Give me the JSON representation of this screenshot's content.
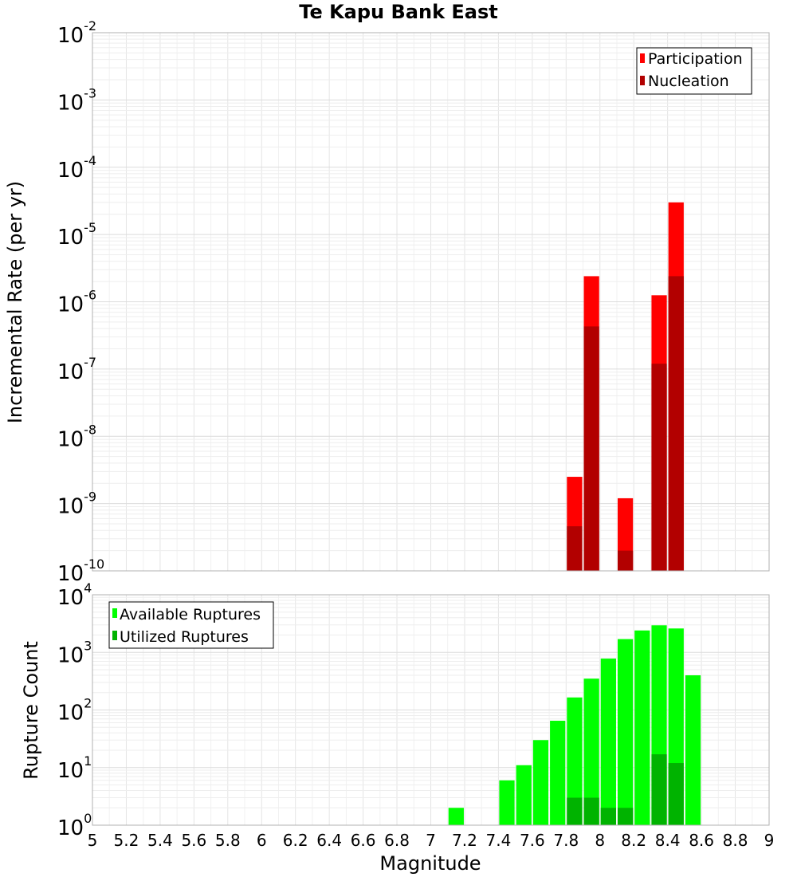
{
  "chart_data": [
    {
      "type": "bar",
      "title": "Te Kapu Bank East",
      "ylabel": "Incremental Rate (per yr)",
      "xlabel": "",
      "yscale": "log",
      "ylim_exponents": [
        -10,
        -2
      ],
      "xlim": [
        5,
        9
      ],
      "bin_width": 0.1,
      "legend_position": "top-right",
      "y_tick_base": "10",
      "y_tick_exponents": [
        "-10",
        "-9",
        "-8",
        "-7",
        "-6",
        "-5",
        "-4",
        "-3",
        "-2"
      ],
      "series": [
        {
          "name": "Participation",
          "color": "#ff0000",
          "points": [
            {
              "x": 7.85,
              "y": 2.5e-09
            },
            {
              "x": 7.95,
              "y": 2.4e-06
            },
            {
              "x": 8.15,
              "y": 1.2e-09
            },
            {
              "x": 8.35,
              "y": 1.25e-06
            },
            {
              "x": 8.45,
              "y": 3e-05
            }
          ]
        },
        {
          "name": "Nucleation",
          "color": "#b20000",
          "points": [
            {
              "x": 7.85,
              "y": 4.6e-10
            },
            {
              "x": 7.95,
              "y": 4.3e-07
            },
            {
              "x": 8.15,
              "y": 2e-10
            },
            {
              "x": 8.35,
              "y": 1.2e-07
            },
            {
              "x": 8.45,
              "y": 2.4e-06
            }
          ]
        }
      ]
    },
    {
      "type": "bar",
      "title": "",
      "ylabel": "Rupture Count",
      "xlabel": "Magnitude",
      "yscale": "log",
      "ylim_exponents": [
        0,
        4
      ],
      "xlim": [
        5,
        9
      ],
      "bin_width": 0.1,
      "legend_position": "top-left",
      "y_tick_base": "10",
      "y_tick_exponents": [
        "0",
        "1",
        "2",
        "3",
        "4"
      ],
      "x_tick_labels": [
        "5",
        "5.2",
        "5.4",
        "5.6",
        "5.8",
        "6",
        "6.2",
        "6.4",
        "6.6",
        "6.8",
        "7",
        "7.2",
        "7.4",
        "7.6",
        "7.8",
        "8",
        "8.2",
        "8.4",
        "8.6",
        "8.8",
        "9"
      ],
      "series": [
        {
          "name": "Available Ruptures",
          "color": "#00ff00",
          "points": [
            {
              "x": 7.15,
              "y": 2
            },
            {
              "x": 7.35,
              "y": 1
            },
            {
              "x": 7.45,
              "y": 6
            },
            {
              "x": 7.55,
              "y": 11
            },
            {
              "x": 7.65,
              "y": 30
            },
            {
              "x": 7.75,
              "y": 65
            },
            {
              "x": 7.85,
              "y": 165
            },
            {
              "x": 7.95,
              "y": 350
            },
            {
              "x": 8.05,
              "y": 780
            },
            {
              "x": 8.15,
              "y": 1700
            },
            {
              "x": 8.25,
              "y": 2400
            },
            {
              "x": 8.35,
              "y": 2950
            },
            {
              "x": 8.45,
              "y": 2600
            },
            {
              "x": 8.55,
              "y": 400
            }
          ]
        },
        {
          "name": "Utilized Ruptures",
          "color": "#00b300",
          "points": [
            {
              "x": 7.85,
              "y": 3
            },
            {
              "x": 7.95,
              "y": 3
            },
            {
              "x": 8.05,
              "y": 2
            },
            {
              "x": 8.15,
              "y": 2
            },
            {
              "x": 8.25,
              "y": 1
            },
            {
              "x": 8.35,
              "y": 17
            },
            {
              "x": 8.45,
              "y": 12
            }
          ]
        }
      ]
    }
  ]
}
